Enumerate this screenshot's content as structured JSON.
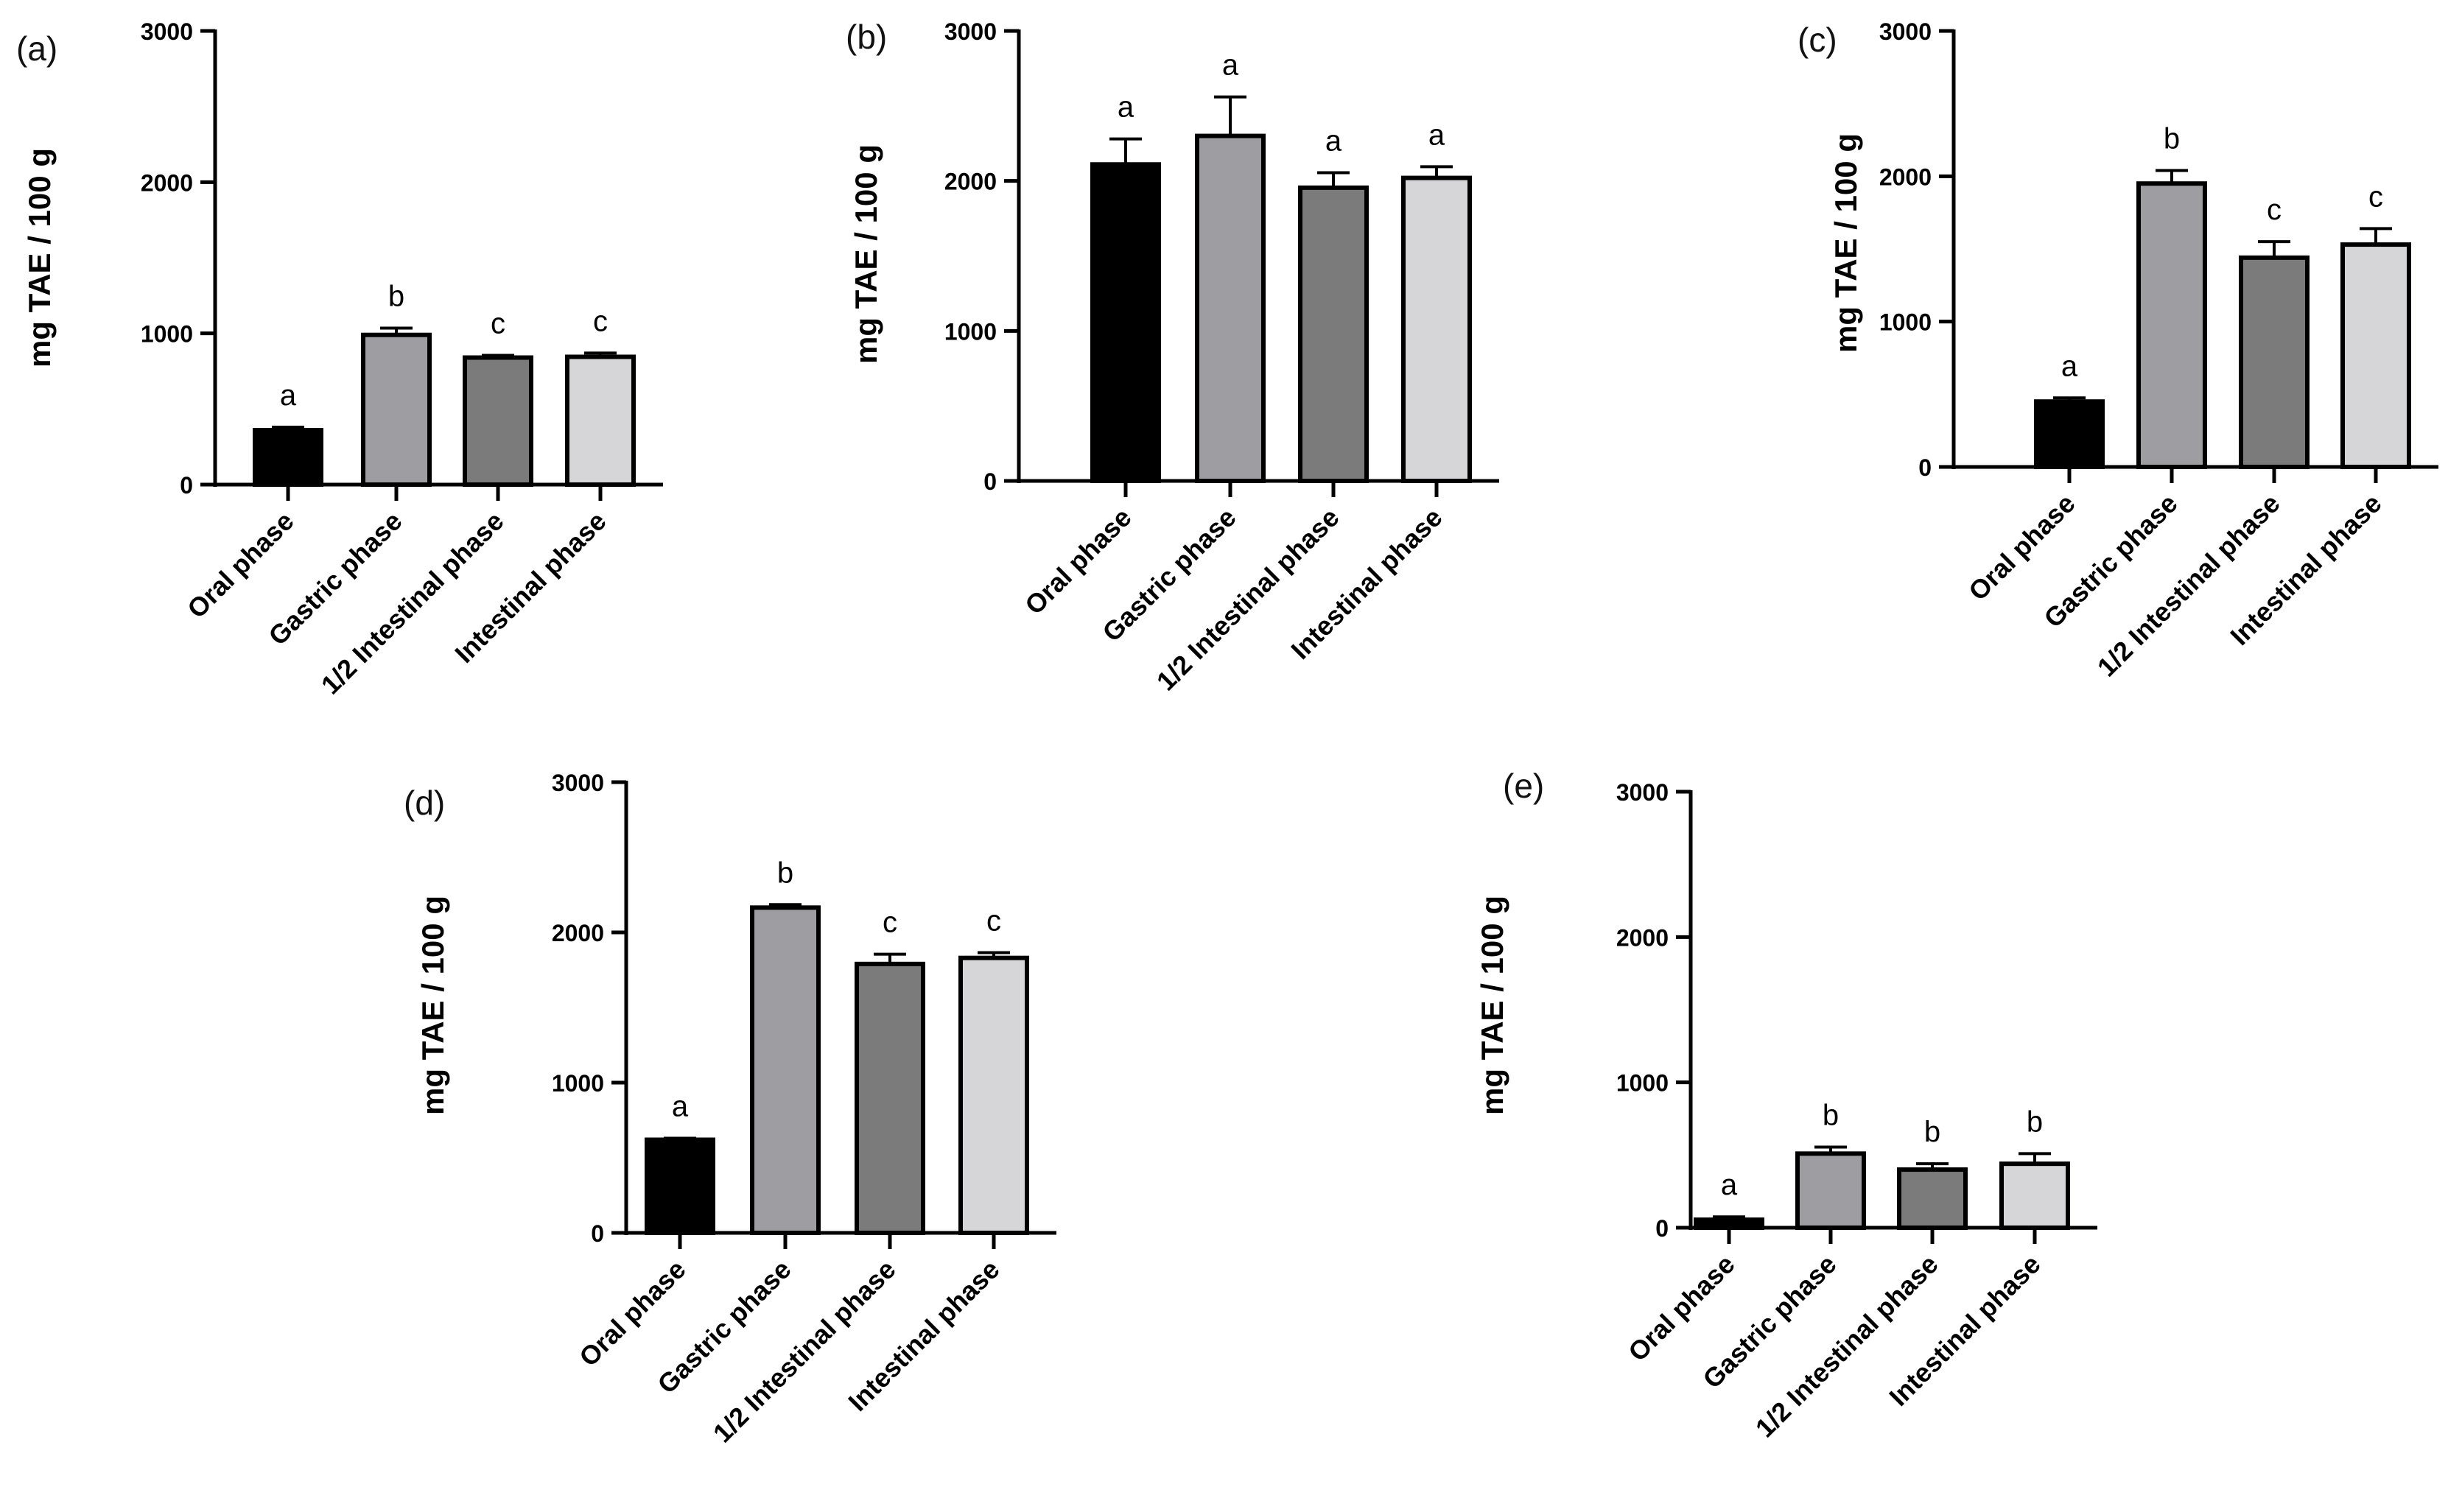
{
  "figure": {
    "category_labels": [
      "Oral phase",
      "Gastric phase",
      "1/2 Intestinal phase",
      "Intestinal phase"
    ],
    "bar_fills": [
      "#000000",
      "#9e9ea2",
      "#7b7b7b",
      "#d6d6d8"
    ]
  },
  "chart_data": [
    {
      "type": "bar",
      "panel_label": "(a)",
      "ylabel": "mg TAE / 100 g",
      "ylim": [
        0,
        3000
      ],
      "yticks": [
        0,
        1000,
        2000,
        3000
      ],
      "categories": [
        "Oral phase",
        "Gastric phase",
        "1/2 Intestinal phase",
        "Intestinal phase"
      ],
      "values": [
        360,
        990,
        840,
        845
      ],
      "errors": [
        20,
        45,
        15,
        25
      ],
      "significance_letters": [
        "a",
        "b",
        "c",
        "c"
      ]
    },
    {
      "type": "bar",
      "panel_label": "(b)",
      "ylabel": "mg TAE / 100 g",
      "ylim": [
        0,
        3000
      ],
      "yticks": [
        0,
        1000,
        2000,
        3000
      ],
      "categories": [
        "Oral phase",
        "Gastric phase",
        "1/2 Intestinal phase",
        "Intestinal phase"
      ],
      "values": [
        2110,
        2300,
        1955,
        2020
      ],
      "errors": [
        170,
        260,
        100,
        75
      ],
      "significance_letters": [
        "a",
        "a",
        "a",
        "a"
      ]
    },
    {
      "type": "bar",
      "panel_label": "(c)",
      "ylabel": "mg TAE / 100 g",
      "ylim": [
        0,
        3000
      ],
      "yticks": [
        0,
        1000,
        2000,
        3000
      ],
      "categories": [
        "Oral phase",
        "Gastric phase",
        "1/2 Intestinal phase",
        "Intestinal phase"
      ],
      "values": [
        450,
        1950,
        1440,
        1530
      ],
      "errors": [
        25,
        90,
        110,
        110
      ],
      "significance_letters": [
        "a",
        "b",
        "c",
        "c"
      ]
    },
    {
      "type": "bar",
      "panel_label": "(d)",
      "ylabel": "mg TAE / 100 g",
      "ylim": [
        0,
        3000
      ],
      "yticks": [
        0,
        1000,
        2000,
        3000
      ],
      "categories": [
        "Oral phase",
        "Gastric phase",
        "1/2 Intestinal phase",
        "Intestinal phase"
      ],
      "values": [
        620,
        2165,
        1790,
        1830
      ],
      "errors": [
        10,
        20,
        65,
        35
      ],
      "significance_letters": [
        "a",
        "b",
        "c",
        "c"
      ]
    },
    {
      "type": "bar",
      "panel_label": "(e)",
      "ylabel": "mg TAE / 100 g",
      "ylim": [
        0,
        3000
      ],
      "yticks": [
        0,
        1000,
        2000,
        3000
      ],
      "categories": [
        "Oral phase",
        "Gastric phase",
        "1/2 Intestinal phase",
        "Intestinal phase"
      ],
      "values": [
        55,
        510,
        400,
        440
      ],
      "errors": [
        20,
        45,
        40,
        70
      ],
      "significance_letters": [
        "a",
        "b",
        "b",
        "b"
      ]
    }
  ]
}
